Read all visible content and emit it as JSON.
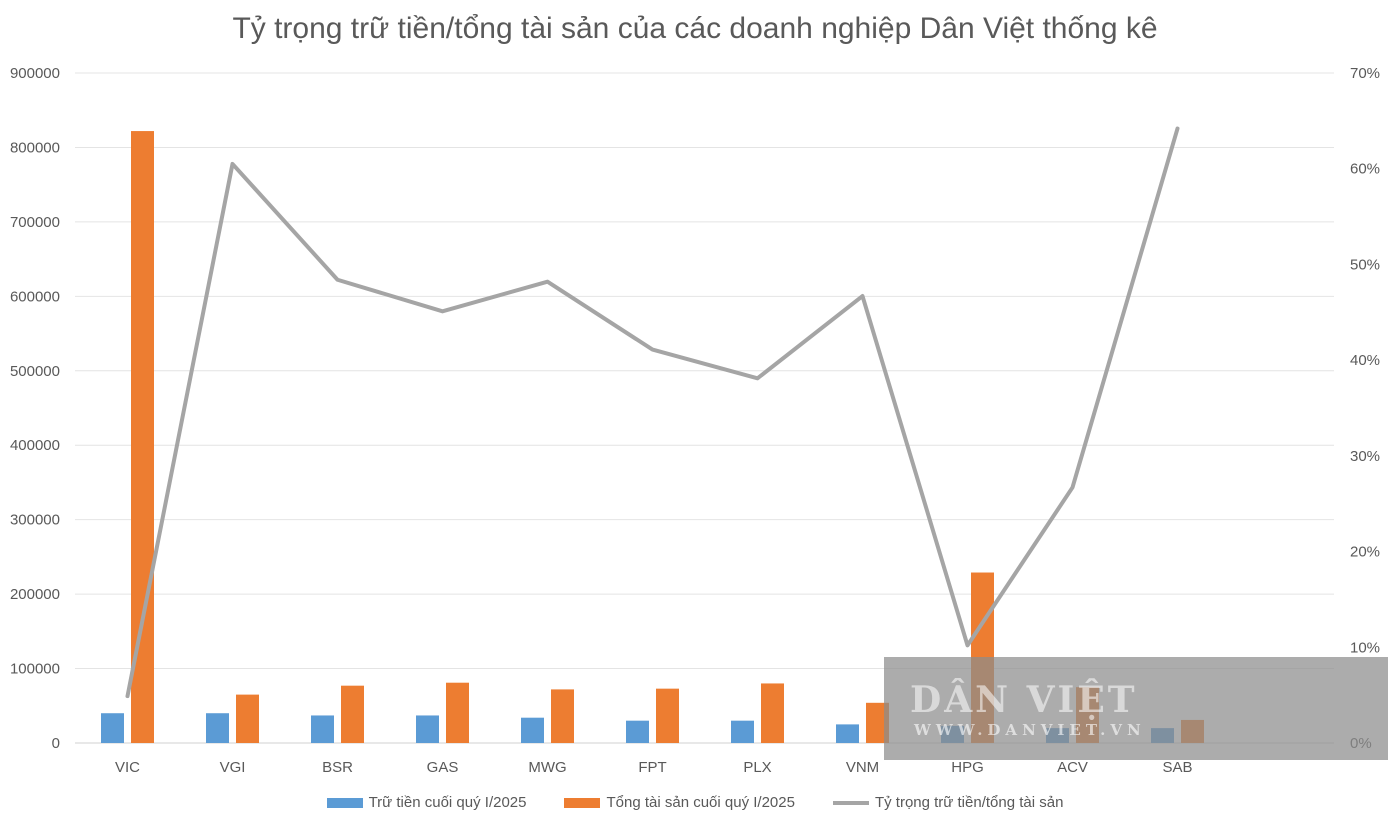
{
  "chart_data": {
    "type": "bar",
    "title": "Tỷ trọng trữ tiền/tổng tài sản của các doanh nghiệp Dân Việt thống kê",
    "categories": [
      "VIC",
      "VGI",
      "BSR",
      "GAS",
      "MWG",
      "FPT",
      "PLX",
      "VNM",
      "HPG",
      "ACV",
      "SAB"
    ],
    "y_left": {
      "ylim": [
        0,
        900000
      ],
      "ticks": [
        "0",
        "100000",
        "200000",
        "300000",
        "400000",
        "500000",
        "600000",
        "700000",
        "800000",
        "900000"
      ]
    },
    "y_right": {
      "ylim": [
        0,
        0.7
      ],
      "ticks": [
        "0%",
        "10%",
        "20%",
        "30%",
        "40%",
        "50%",
        "60%",
        "70%"
      ]
    },
    "grid": true,
    "legend_position": "bottom",
    "series": [
      {
        "name": "Trữ tiền cuối quý I/2025",
        "kind": "bar",
        "axis": "left",
        "color": "#5b9bd5",
        "values": [
          40000,
          40000,
          37000,
          37000,
          34000,
          30000,
          30000,
          25000,
          23000,
          20000,
          20000
        ]
      },
      {
        "name": "Tổng tài sản cuối quý I/2025",
        "kind": "bar",
        "axis": "left",
        "color": "#ed7d31",
        "values": [
          822000,
          65000,
          77000,
          81000,
          72000,
          73000,
          80000,
          54000,
          229000,
          75000,
          31000
        ]
      },
      {
        "name": "Tỷ trọng trữ tiền/tổng tài sản",
        "kind": "line",
        "axis": "right",
        "color": "#a5a5a5",
        "values": [
          0.049,
          0.605,
          0.484,
          0.451,
          0.482,
          0.411,
          0.381,
          0.467,
          0.102,
          0.267,
          0.642
        ]
      }
    ]
  },
  "watermark": {
    "logo_text": "DÂN VIỆT",
    "url_text": "WWW.DANVIET.VN"
  }
}
